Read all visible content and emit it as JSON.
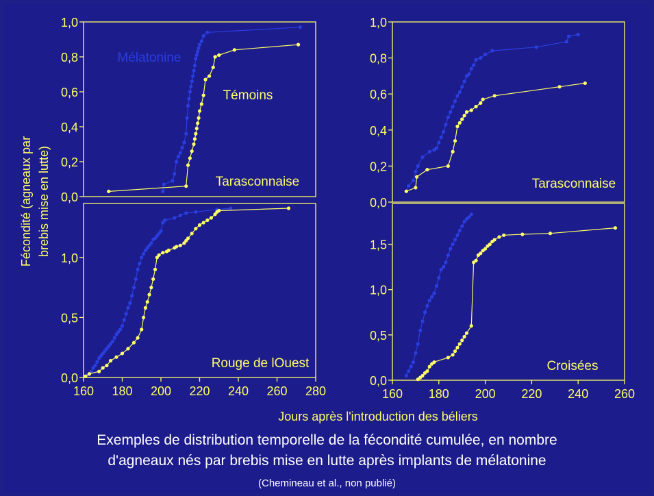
{
  "colors": {
    "background": "#1c1c8c",
    "axis": "#ffff66",
    "melatonine": "#2a3ee0",
    "temoins": "#ffff66",
    "caption": "#ffffff"
  },
  "y_axis_label_line1": "Fécondité (agneaux par",
  "y_axis_label_line2": "brebis mise en lutte)",
  "x_axis_label": "Jours après l'introduction des béliers",
  "caption_line1": "Exemples de distribution temporelle de la fécondité cumulée, en nombre",
  "caption_line2": "d'agneaux nés par brebis mise en lutte après implants de mélatonine",
  "caption_source": "(Chemineau et al., non publié)",
  "chart_data": [
    {
      "type": "line",
      "panel": "top-left",
      "breed": "Tarasconnaise",
      "xlim": [
        160,
        280
      ],
      "ylim": [
        0,
        1.0
      ],
      "y_ticks": [
        "0,0",
        "0,2",
        "0,4",
        "0,6",
        "0,8",
        "1,0"
      ],
      "y_tick_values": [
        0,
        0.2,
        0.4,
        0.6,
        0.8,
        1.0
      ],
      "x_ticks": [],
      "annotations": [
        "Mélatonine",
        "Témoins"
      ],
      "series": [
        {
          "name": "Mélatonine",
          "color": "#2a3ee0",
          "x": [
            201,
            201.5,
            206,
            207,
            208,
            209,
            210,
            211,
            212,
            213,
            213.5,
            214,
            214.5,
            215,
            215.5,
            216,
            216.5,
            217,
            217.5,
            218,
            218.5,
            219,
            219.5,
            220,
            221,
            222,
            224,
            272
          ],
          "y": [
            0.03,
            0.07,
            0.09,
            0.13,
            0.2,
            0.23,
            0.25,
            0.28,
            0.31,
            0.36,
            0.45,
            0.52,
            0.56,
            0.6,
            0.63,
            0.66,
            0.69,
            0.72,
            0.75,
            0.79,
            0.81,
            0.83,
            0.85,
            0.87,
            0.89,
            0.92,
            0.94,
            0.97
          ]
        },
        {
          "name": "Témoins",
          "color": "#ffff66",
          "x": [
            173,
            213,
            214,
            215,
            216,
            217,
            217.5,
            218,
            218.5,
            219,
            219.5,
            220,
            221,
            222,
            223,
            225,
            227,
            228,
            230,
            238,
            271
          ],
          "y": [
            0.03,
            0.06,
            0.18,
            0.22,
            0.26,
            0.3,
            0.33,
            0.36,
            0.39,
            0.42,
            0.45,
            0.49,
            0.53,
            0.58,
            0.67,
            0.69,
            0.74,
            0.8,
            0.81,
            0.84,
            0.87
          ]
        }
      ]
    },
    {
      "type": "line",
      "panel": "top-right",
      "breed": "Tarasconnaise",
      "xlim": [
        160,
        260
      ],
      "ylim": [
        0,
        1.0
      ],
      "y_ticks": [
        "0,0",
        "0,2",
        "0,4",
        "0,6",
        "0,8",
        "1,0"
      ],
      "y_tick_values": [
        0,
        0.2,
        0.4,
        0.6,
        0.8,
        1.0
      ],
      "x_ticks": [],
      "series": [
        {
          "name": "Mélatonine",
          "color": "#2a3ee0",
          "x": [
            166,
            167,
            169,
            170,
            171,
            173,
            176,
            178,
            179,
            180,
            181,
            182,
            183,
            184,
            185,
            186,
            187,
            188,
            189,
            190,
            191,
            192,
            193,
            194,
            195,
            196,
            198,
            200,
            203,
            222,
            235,
            236,
            240
          ],
          "y": [
            0.06,
            0.09,
            0.12,
            0.17,
            0.2,
            0.25,
            0.28,
            0.29,
            0.3,
            0.33,
            0.36,
            0.39,
            0.43,
            0.47,
            0.5,
            0.53,
            0.56,
            0.59,
            0.61,
            0.64,
            0.67,
            0.7,
            0.71,
            0.74,
            0.76,
            0.79,
            0.8,
            0.82,
            0.84,
            0.86,
            0.89,
            0.92,
            0.93
          ]
        },
        {
          "name": "Témoins",
          "color": "#ffff66",
          "x": [
            166,
            170,
            170.5,
            175,
            184,
            186,
            187,
            188,
            189,
            190,
            191,
            192,
            194,
            196,
            198,
            199,
            204,
            232,
            243
          ],
          "y": [
            0.06,
            0.08,
            0.14,
            0.18,
            0.2,
            0.28,
            0.34,
            0.42,
            0.44,
            0.46,
            0.48,
            0.5,
            0.51,
            0.53,
            0.55,
            0.57,
            0.59,
            0.64,
            0.66
          ]
        }
      ]
    },
    {
      "type": "line",
      "panel": "bottom-left",
      "breed": "Rouge de lOuest",
      "xlim": [
        160,
        280
      ],
      "ylim": [
        0,
        1.45
      ],
      "y_ticks": [
        "0,0",
        "0,5",
        "1,0"
      ],
      "y_tick_values": [
        0,
        0.5,
        1.0
      ],
      "x_ticks": [
        160,
        180,
        200,
        220,
        240,
        260,
        280
      ],
      "series": [
        {
          "name": "Mélatonine",
          "color": "#2a3ee0",
          "x": [
            162,
            164,
            165,
            166,
            167,
            168,
            169,
            170,
            171,
            172,
            173,
            174,
            175,
            176,
            177,
            178,
            179,
            180,
            181,
            182,
            183,
            184,
            185,
            186,
            187,
            188,
            189,
            190,
            191,
            192,
            193,
            194,
            195,
            196,
            197,
            198,
            199,
            200,
            201,
            202,
            207,
            210,
            213,
            218,
            229,
            236
          ],
          "y": [
            0.02,
            0.05,
            0.08,
            0.1,
            0.13,
            0.16,
            0.18,
            0.2,
            0.22,
            0.24,
            0.26,
            0.28,
            0.3,
            0.33,
            0.36,
            0.38,
            0.4,
            0.43,
            0.48,
            0.53,
            0.58,
            0.62,
            0.68,
            0.75,
            0.82,
            0.9,
            0.95,
            1.0,
            1.03,
            1.06,
            1.08,
            1.1,
            1.12,
            1.15,
            1.16,
            1.18,
            1.2,
            1.22,
            1.29,
            1.31,
            1.33,
            1.35,
            1.37,
            1.38,
            1.4,
            1.41
          ]
        },
        {
          "name": "Témoins",
          "color": "#ffff66",
          "x": [
            161,
            163,
            168,
            170,
            172,
            174,
            177,
            180,
            183,
            186,
            188,
            190,
            191,
            192,
            193,
            194,
            195,
            196,
            197,
            198,
            199,
            201,
            203,
            204,
            207,
            208,
            210,
            212,
            213,
            214,
            216,
            218,
            220,
            222,
            224,
            226,
            228,
            229,
            230,
            266
          ],
          "y": [
            0.01,
            0.03,
            0.05,
            0.08,
            0.1,
            0.14,
            0.17,
            0.2,
            0.24,
            0.29,
            0.33,
            0.4,
            0.5,
            0.58,
            0.63,
            0.69,
            0.75,
            0.82,
            0.9,
            1.0,
            1.02,
            1.04,
            1.05,
            1.06,
            1.08,
            1.09,
            1.1,
            1.12,
            1.14,
            1.16,
            1.2,
            1.24,
            1.27,
            1.29,
            1.31,
            1.33,
            1.36,
            1.38,
            1.39,
            1.41
          ]
        }
      ]
    },
    {
      "type": "line",
      "panel": "bottom-right",
      "breed": "Croisées",
      "xlim": [
        160,
        260
      ],
      "ylim": [
        0,
        1.95
      ],
      "y_ticks": [
        "0,0",
        "0,5",
        "1,0",
        "1,5"
      ],
      "y_tick_values": [
        0,
        0.5,
        1.0,
        1.5
      ],
      "x_ticks": [
        160,
        180,
        200,
        220,
        240,
        260
      ],
      "series": [
        {
          "name": "Mélatonine",
          "color": "#2a3ee0",
          "x": [
            166,
            167,
            168,
            169,
            170,
            171,
            172,
            173,
            174,
            175,
            176,
            177,
            178,
            179,
            180,
            181,
            182,
            183,
            184,
            185,
            186,
            187,
            188,
            189,
            190,
            191,
            192,
            193,
            194
          ],
          "y": [
            0.05,
            0.1,
            0.15,
            0.2,
            0.3,
            0.4,
            0.55,
            0.65,
            0.75,
            0.82,
            0.88,
            0.92,
            0.96,
            1.04,
            1.13,
            1.22,
            1.25,
            1.3,
            1.38,
            1.45,
            1.5,
            1.55,
            1.6,
            1.65,
            1.7,
            1.75,
            1.78,
            1.8,
            1.83
          ]
        },
        {
          "name": "Témoins",
          "color": "#ffff66",
          "x": [
            171,
            172,
            173,
            174,
            175,
            176,
            177,
            178,
            184,
            186,
            187,
            188,
            189,
            190,
            191,
            192,
            194,
            195,
            196,
            197,
            198,
            199,
            200,
            201,
            202,
            203,
            204,
            206,
            208,
            216,
            228,
            256
          ],
          "y": [
            0.01,
            0.03,
            0.05,
            0.08,
            0.1,
            0.15,
            0.18,
            0.2,
            0.25,
            0.28,
            0.32,
            0.36,
            0.4,
            0.44,
            0.48,
            0.52,
            0.6,
            1.3,
            1.32,
            1.38,
            1.4,
            1.43,
            1.45,
            1.48,
            1.5,
            1.53,
            1.55,
            1.58,
            1.6,
            1.61,
            1.62,
            1.68
          ]
        }
      ]
    }
  ]
}
